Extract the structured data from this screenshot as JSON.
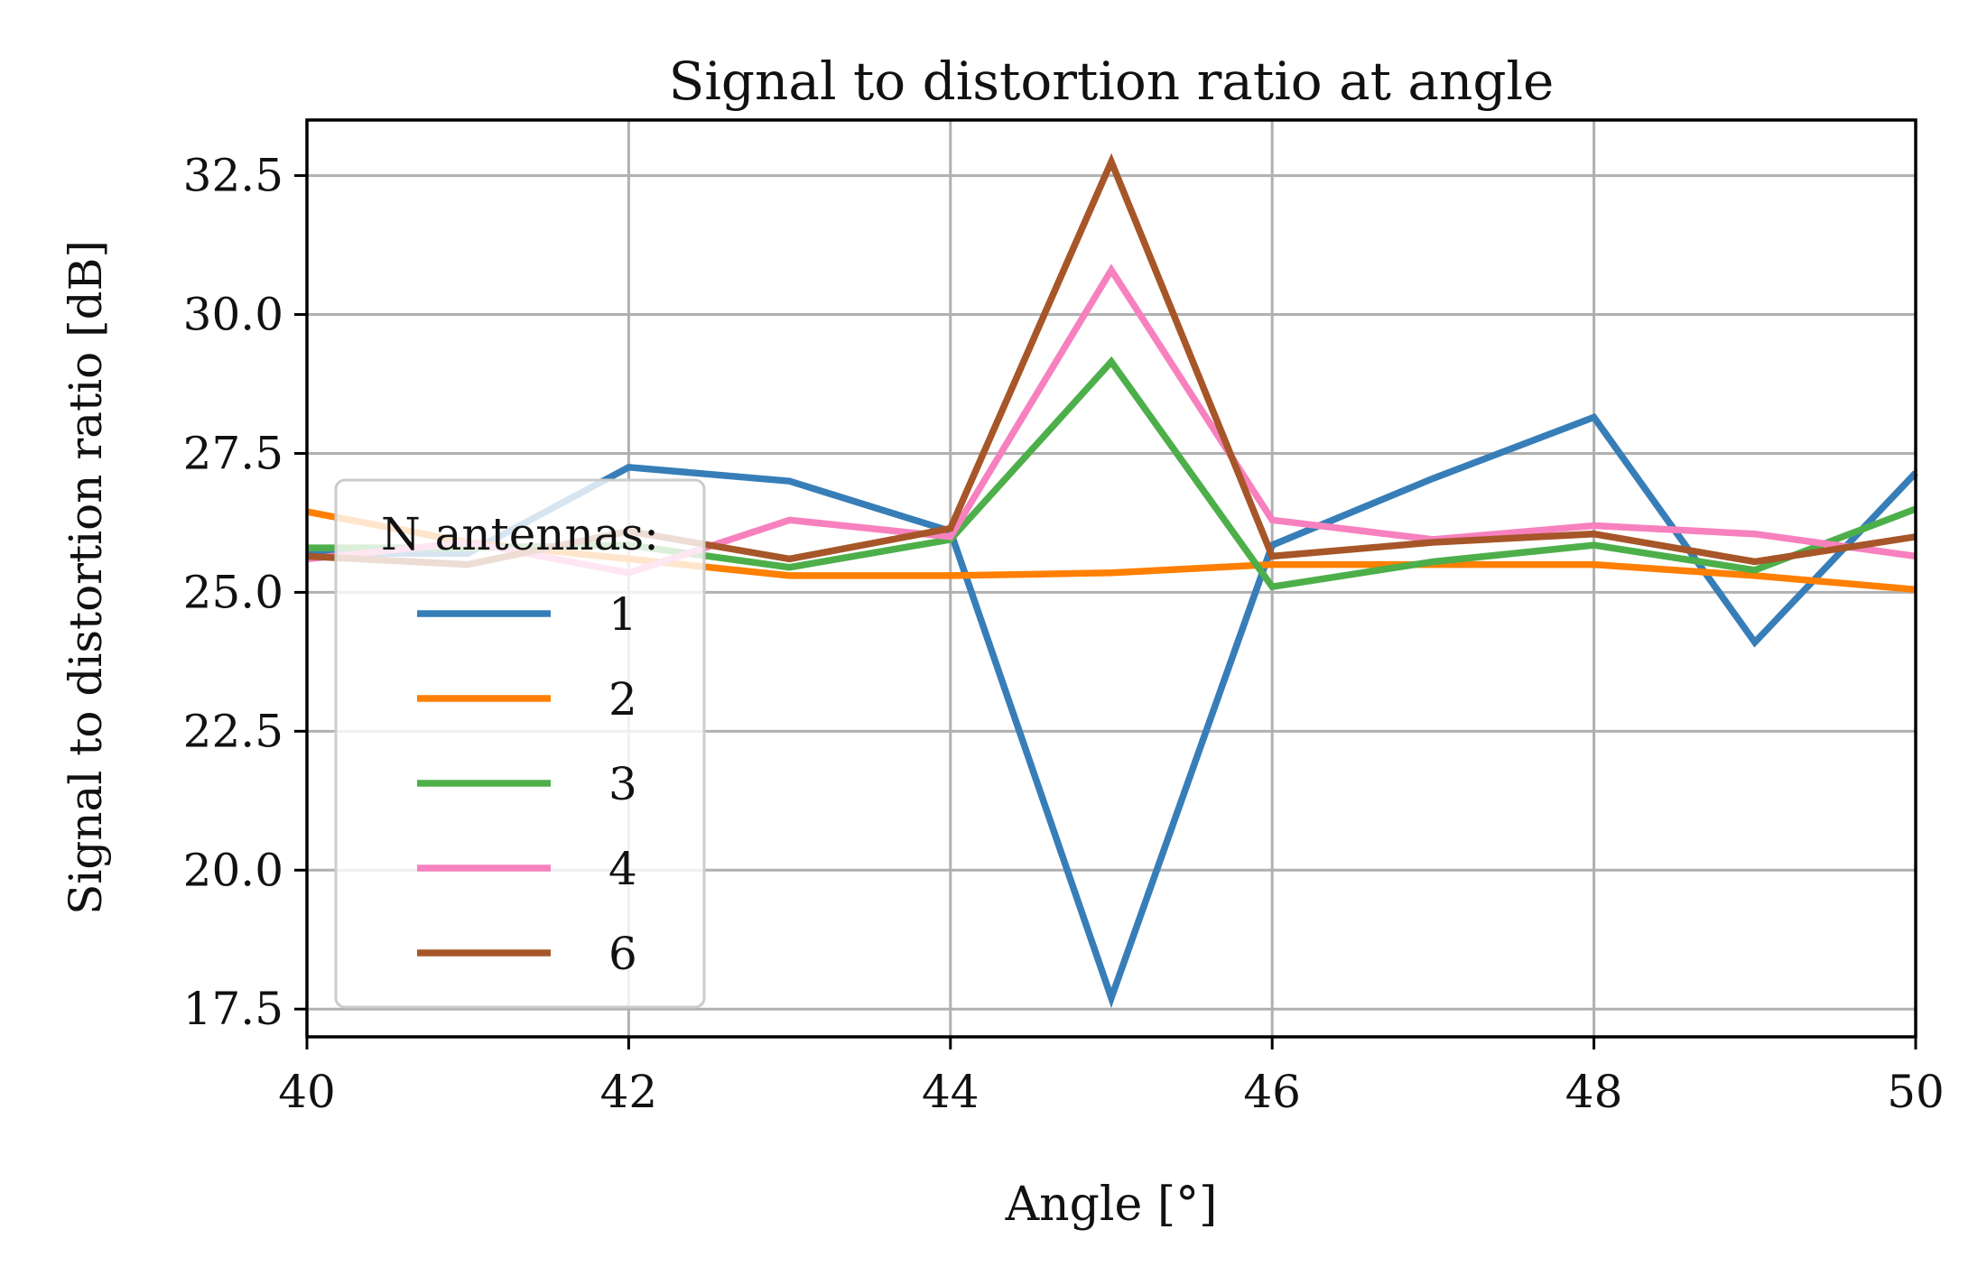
{
  "chart_data": {
    "type": "line",
    "title": "Signal to distortion ratio at angle",
    "xlabel": "Angle [°]",
    "ylabel": "Signal to distortion ratio [dB]",
    "xlim": [
      40,
      50
    ],
    "ylim": [
      17,
      33.5
    ],
    "xticks": [
      40,
      42,
      44,
      46,
      48,
      50
    ],
    "xtick_labels": [
      "40",
      "42",
      "44",
      "46",
      "48",
      "50"
    ],
    "yticks": [
      17.5,
      20.0,
      22.5,
      25.0,
      27.5,
      30.0,
      32.5
    ],
    "ytick_labels": [
      "17.5",
      "20.0",
      "22.5",
      "25.0",
      "27.5",
      "30.0",
      "32.5"
    ],
    "grid": true,
    "legend": {
      "title": "N antennas:",
      "position": "lower-left"
    },
    "x": [
      40,
      41,
      42,
      43,
      44,
      45,
      46,
      47,
      48,
      49,
      50
    ],
    "series": [
      {
        "name": "1",
        "color": "#377eb8",
        "values": [
          25.7,
          25.7,
          27.25,
          27.0,
          26.1,
          17.7,
          25.85,
          27.05,
          28.15,
          24.1,
          27.15
        ]
      },
      {
        "name": "2",
        "color": "#ff7f00",
        "values": [
          26.45,
          25.9,
          25.6,
          25.3,
          25.3,
          25.35,
          25.5,
          25.5,
          25.5,
          25.3,
          25.05
        ]
      },
      {
        "name": "3",
        "color": "#4daf4a",
        "values": [
          25.8,
          25.8,
          25.85,
          25.45,
          25.95,
          29.15,
          25.1,
          25.55,
          25.85,
          25.4,
          26.5
        ]
      },
      {
        "name": "4",
        "color": "#f781bf",
        "values": [
          25.6,
          25.9,
          25.35,
          26.3,
          26.0,
          30.8,
          26.3,
          25.95,
          26.2,
          26.05,
          25.65
        ]
      },
      {
        "name": "6",
        "color": "#a65628",
        "values": [
          25.65,
          25.5,
          26.1,
          25.6,
          26.15,
          32.75,
          25.65,
          25.9,
          26.05,
          25.55,
          26.0
        ]
      }
    ]
  }
}
